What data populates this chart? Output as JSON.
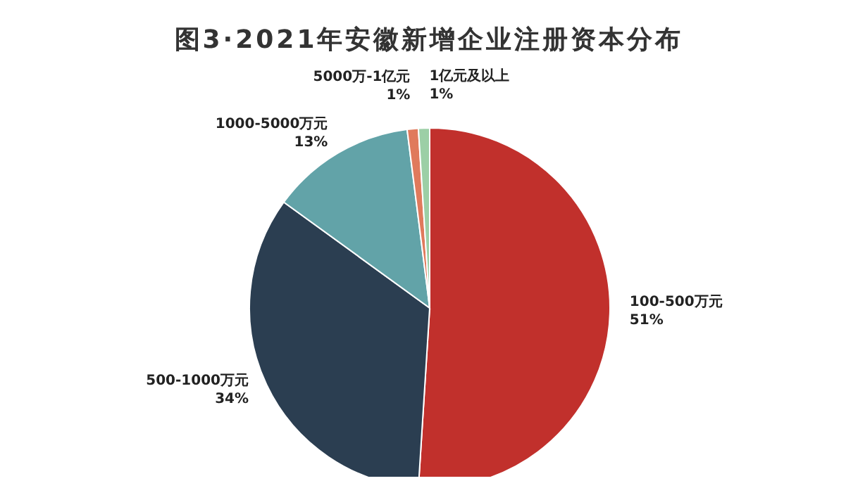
{
  "chart_data": {
    "type": "pie",
    "title": "图3·2021年安徽新增企业注册资本分布",
    "categories": [
      "100-500万元",
      "500-1000万元",
      "1000-5000万元",
      "5000万-1亿元",
      "1亿元及以上"
    ],
    "values": [
      51,
      34,
      13,
      1,
      1
    ],
    "colors": [
      "#c1302c",
      "#2b3e51",
      "#62a3a8",
      "#e07a5c",
      "#9ccfa6"
    ],
    "value_labels": [
      "51%",
      "34%",
      "13%",
      "1%",
      "1%"
    ],
    "legend": false
  }
}
